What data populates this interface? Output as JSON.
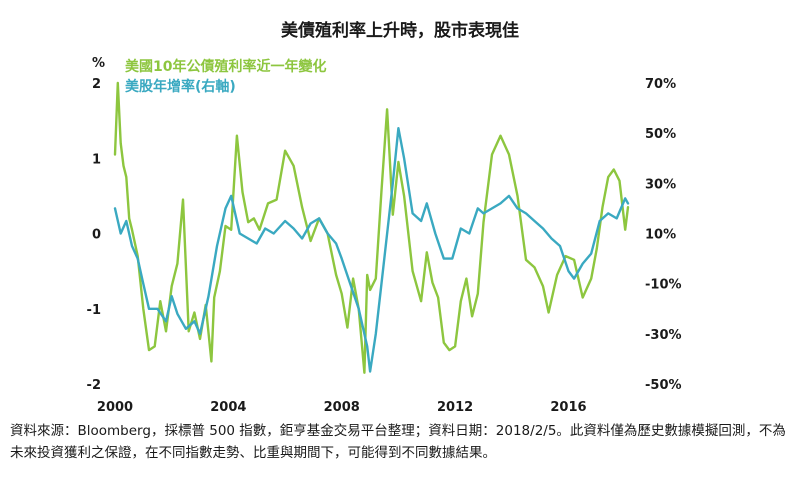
{
  "chart_data": {
    "type": "line",
    "title": "美債殖利率上升時，股市表現佳",
    "left_axis": {
      "unit": "%",
      "ylim": [
        -2,
        2
      ],
      "ticks": [
        "2",
        "1",
        "0",
        "-1",
        "-2"
      ]
    },
    "right_axis": {
      "ylim": [
        -50,
        70
      ],
      "ticks": [
        "70%",
        "50%",
        "30%",
        "10%",
        "-10%",
        "-30%",
        "-50%"
      ]
    },
    "x_ticks": [
      "2000",
      "2004",
      "2008",
      "2012",
      "2016"
    ],
    "xlim": [
      2000,
      2018.1
    ],
    "legend_position": "top-left",
    "series": [
      {
        "name": "美國10年公債殖利率近一年變化",
        "axis": "left",
        "color": "#8dc63f",
        "x": [
          2000.0,
          2000.1,
          2000.2,
          2000.3,
          2000.4,
          2000.5,
          2000.6,
          2000.8,
          2001.0,
          2001.2,
          2001.4,
          2001.6,
          2001.8,
          2002.0,
          2002.2,
          2002.4,
          2002.6,
          2002.8,
          2003.0,
          2003.2,
          2003.4,
          2003.5,
          2003.7,
          2003.9,
          2004.1,
          2004.3,
          2004.5,
          2004.7,
          2004.9,
          2005.1,
          2005.4,
          2005.7,
          2006.0,
          2006.3,
          2006.6,
          2006.9,
          2007.2,
          2007.5,
          2007.8,
          2008.0,
          2008.2,
          2008.4,
          2008.6,
          2008.8,
          2008.9,
          2009.0,
          2009.2,
          2009.4,
          2009.6,
          2009.8,
          2010.0,
          2010.2,
          2010.5,
          2010.8,
          2011.0,
          2011.2,
          2011.4,
          2011.6,
          2011.8,
          2012.0,
          2012.2,
          2012.4,
          2012.6,
          2012.8,
          2013.0,
          2013.3,
          2013.6,
          2013.9,
          2014.2,
          2014.5,
          2014.8,
          2015.1,
          2015.3,
          2015.6,
          2015.9,
          2016.2,
          2016.5,
          2016.8,
          2017.0,
          2017.2,
          2017.4,
          2017.6,
          2017.8,
          2018.0,
          2018.1
        ],
        "values": [
          1.05,
          2.0,
          1.2,
          0.9,
          0.75,
          0.2,
          0.05,
          -0.3,
          -1.0,
          -1.55,
          -1.5,
          -0.9,
          -1.3,
          -0.7,
          -0.4,
          0.45,
          -1.3,
          -1.05,
          -1.4,
          -0.95,
          -1.7,
          -0.85,
          -0.5,
          0.1,
          0.05,
          1.3,
          0.55,
          0.15,
          0.2,
          0.05,
          0.4,
          0.45,
          1.1,
          0.9,
          0.35,
          -0.1,
          0.2,
          0.0,
          -0.55,
          -0.8,
          -1.25,
          -0.6,
          -1.0,
          -1.85,
          -0.55,
          -0.75,
          -0.6,
          0.55,
          1.65,
          0.25,
          0.95,
          0.5,
          -0.5,
          -0.9,
          -0.25,
          -0.65,
          -0.85,
          -1.45,
          -1.55,
          -1.5,
          -0.9,
          -0.6,
          -1.1,
          -0.8,
          0.15,
          1.05,
          1.3,
          1.05,
          0.5,
          -0.35,
          -0.45,
          -0.7,
          -1.05,
          -0.55,
          -0.3,
          -0.35,
          -0.85,
          -0.6,
          -0.2,
          0.35,
          0.75,
          0.85,
          0.7,
          0.05,
          0.35
        ]
      },
      {
        "name": "美股年增率(右軸)",
        "axis": "right",
        "color": "#3aa9c1",
        "x": [
          2000.0,
          2000.2,
          2000.4,
          2000.6,
          2000.8,
          2001.0,
          2001.2,
          2001.5,
          2001.8,
          2002.0,
          2002.2,
          2002.5,
          2002.8,
          2003.0,
          2003.3,
          2003.6,
          2003.9,
          2004.1,
          2004.4,
          2004.7,
          2005.0,
          2005.3,
          2005.6,
          2006.0,
          2006.3,
          2006.6,
          2006.9,
          2007.2,
          2007.5,
          2007.8,
          2008.0,
          2008.3,
          2008.6,
          2008.9,
          2009.0,
          2009.2,
          2009.5,
          2009.8,
          2010.0,
          2010.2,
          2010.5,
          2010.8,
          2011.0,
          2011.3,
          2011.6,
          2011.9,
          2012.2,
          2012.5,
          2012.8,
          2013.0,
          2013.3,
          2013.6,
          2013.9,
          2014.2,
          2014.5,
          2014.8,
          2015.1,
          2015.4,
          2015.7,
          2016.0,
          2016.2,
          2016.5,
          2016.8,
          2017.1,
          2017.4,
          2017.7,
          2018.0,
          2018.1
        ],
        "values": [
          20,
          10,
          15,
          5,
          0,
          -10,
          -20,
          -20,
          -25,
          -15,
          -22,
          -28,
          -25,
          -30,
          -15,
          5,
          20,
          25,
          10,
          8,
          6,
          12,
          10,
          15,
          12,
          8,
          14,
          16,
          10,
          6,
          0,
          -10,
          -20,
          -35,
          -45,
          -30,
          0,
          30,
          52,
          40,
          18,
          15,
          22,
          10,
          0,
          0,
          12,
          10,
          20,
          18,
          20,
          22,
          25,
          20,
          18,
          15,
          12,
          8,
          5,
          -5,
          -8,
          -2,
          2,
          15,
          18,
          16,
          24,
          22
        ]
      }
    ]
  },
  "source_note": "資料來源：Bloomberg，採標普 500 指數，鉅亨基金交易平台整理；資料日期：2018/2/5。此資料僅為歷史數據模擬回測，不為未來投資獲利之保證，在不同指數走勢、比重與期間下，可能得到不同數據結果。"
}
